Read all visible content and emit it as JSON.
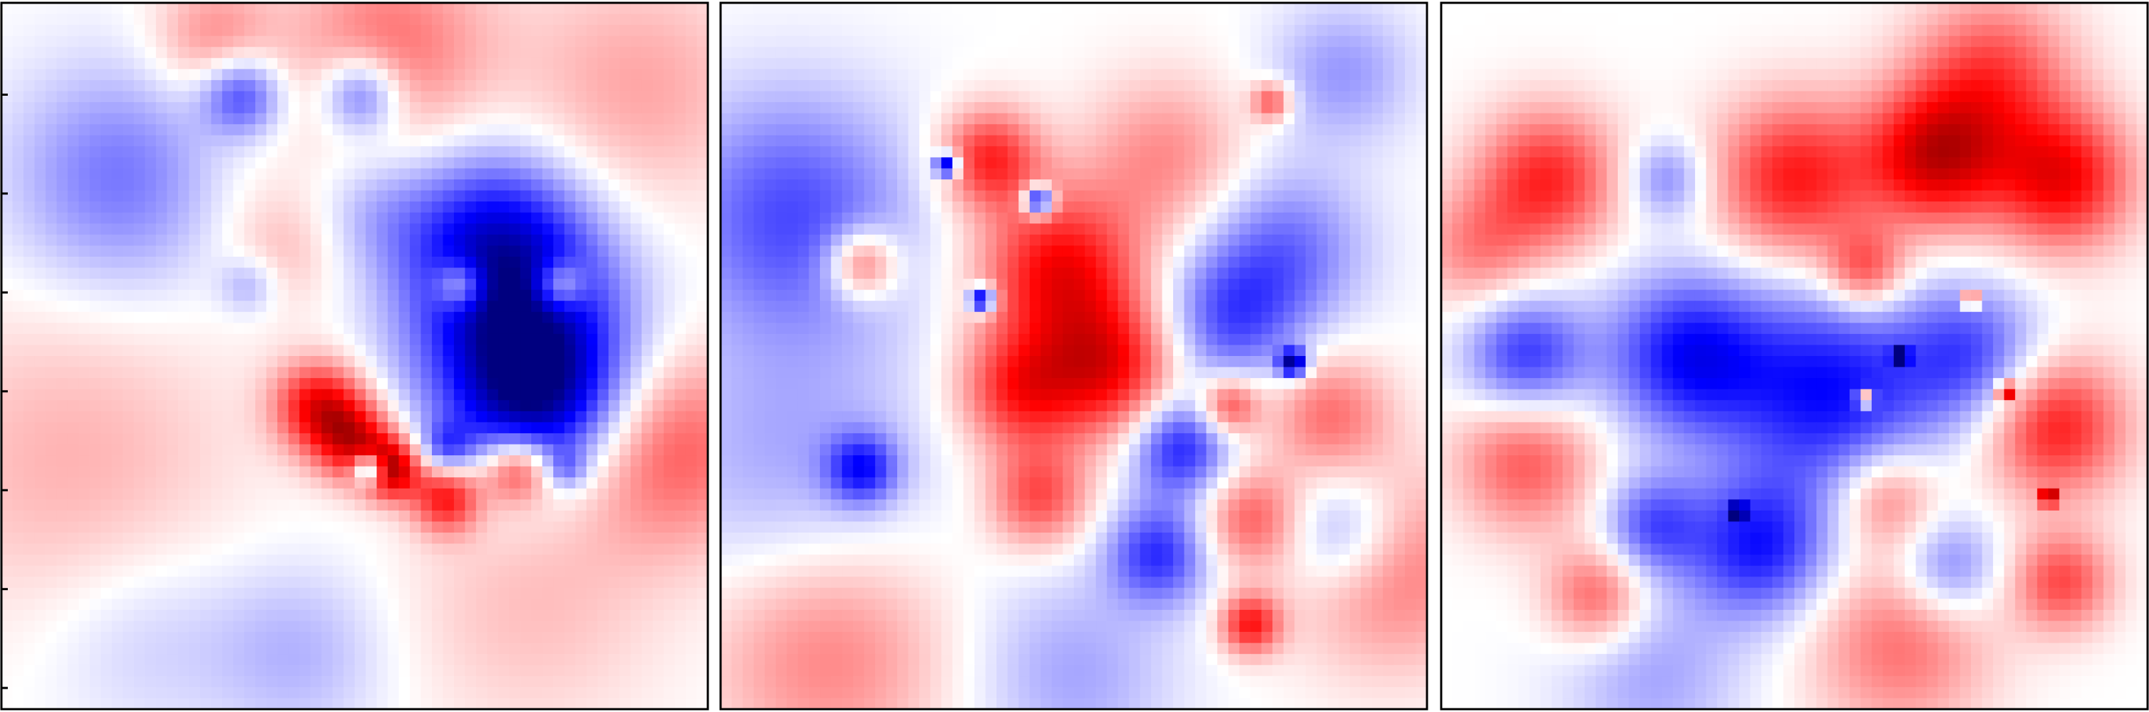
{
  "chart_data": {
    "type": "heatmap",
    "title": "",
    "xlabel": "",
    "ylabel": "",
    "colormap": "bwr",
    "colors": {
      "negative": "#0000ff",
      "zero": "#ffffff",
      "positive": "#ff0000",
      "deep_negative": "#00007f",
      "deep_positive": "#7f0000"
    },
    "grid": false,
    "legend": "none",
    "panels": [
      {
        "id": "panel-1",
        "yticks_visible": 7,
        "description_values": [
          {
            "u": 0.17,
            "v": 0.25,
            "value": -0.55,
            "s": 0.11
          },
          {
            "u": 0.55,
            "v": 0.06,
            "value": 0.55,
            "s": 0.1
          },
          {
            "u": 0.9,
            "v": 0.12,
            "value": 0.35,
            "s": 0.12
          },
          {
            "u": 0.34,
            "v": 0.13,
            "value": -0.75,
            "s": 0.04
          },
          {
            "u": 0.51,
            "v": 0.13,
            "value": -0.75,
            "s": 0.04
          },
          {
            "u": 0.3,
            "v": 0.05,
            "value": 0.45,
            "s": 0.06
          },
          {
            "u": 0.53,
            "v": 0.3,
            "value": -0.25,
            "s": 0.06
          },
          {
            "u": 0.7,
            "v": 0.34,
            "value": -0.95,
            "s": 0.09
          },
          {
            "u": 0.74,
            "v": 0.48,
            "value": -1.0,
            "s": 0.11
          },
          {
            "u": 0.76,
            "v": 0.56,
            "value": -0.9,
            "s": 0.08
          },
          {
            "u": 0.65,
            "v": 0.4,
            "value": 0.75,
            "s": 0.025
          },
          {
            "u": 0.79,
            "v": 0.4,
            "value": 0.75,
            "s": 0.025
          },
          {
            "u": 0.35,
            "v": 0.4,
            "value": -0.35,
            "s": 0.03
          },
          {
            "u": 0.4,
            "v": 0.35,
            "value": 0.25,
            "s": 0.06
          },
          {
            "u": 0.45,
            "v": 0.57,
            "value": 1.0,
            "s": 0.045
          },
          {
            "u": 0.5,
            "v": 0.62,
            "value": 0.95,
            "s": 0.04
          },
          {
            "u": 0.52,
            "v": 0.66,
            "value": -1.3,
            "s": 0.016
          },
          {
            "u": 0.55,
            "v": 0.66,
            "value": 1.2,
            "s": 0.03
          },
          {
            "u": 0.63,
            "v": 0.7,
            "value": 0.95,
            "s": 0.035
          },
          {
            "u": 0.73,
            "v": 0.66,
            "value": 0.95,
            "s": 0.035
          },
          {
            "u": 0.63,
            "v": 0.63,
            "value": -0.55,
            "s": 0.025
          },
          {
            "u": 0.8,
            "v": 0.66,
            "value": -0.4,
            "s": 0.02
          },
          {
            "u": 0.95,
            "v": 0.63,
            "value": 0.65,
            "s": 0.1
          },
          {
            "u": 0.1,
            "v": 0.65,
            "value": 0.3,
            "s": 0.16
          },
          {
            "u": 0.75,
            "v": 0.85,
            "value": 0.25,
            "s": 0.13
          },
          {
            "u": 0.2,
            "v": 0.9,
            "value": -0.2,
            "s": 0.1
          },
          {
            "u": 0.42,
            "v": 0.92,
            "value": -0.3,
            "s": 0.09
          },
          {
            "u": 0.33,
            "v": 0.25,
            "value": 0.1,
            "s": 0.08
          }
        ]
      },
      {
        "id": "panel-2",
        "yticks_visible": 0,
        "description_values": [
          {
            "u": 0.1,
            "v": 0.3,
            "value": -0.7,
            "s": 0.12
          },
          {
            "u": 0.1,
            "v": 0.65,
            "value": -0.35,
            "s": 0.14
          },
          {
            "u": 0.2,
            "v": 0.37,
            "value": 0.8,
            "s": 0.035
          },
          {
            "u": 0.38,
            "v": 0.22,
            "value": 0.85,
            "s": 0.05
          },
          {
            "u": 0.48,
            "v": 0.38,
            "value": 1.0,
            "s": 0.08
          },
          {
            "u": 0.55,
            "v": 0.52,
            "value": 0.95,
            "s": 0.07
          },
          {
            "u": 0.42,
            "v": 0.55,
            "value": 0.8,
            "s": 0.06
          },
          {
            "u": 0.63,
            "v": 0.22,
            "value": 0.45,
            "s": 0.08
          },
          {
            "u": 0.72,
            "v": 0.45,
            "value": -0.65,
            "s": 0.07
          },
          {
            "u": 0.8,
            "v": 0.35,
            "value": -0.55,
            "s": 0.08
          },
          {
            "u": 0.86,
            "v": 0.58,
            "value": 0.55,
            "s": 0.06
          },
          {
            "u": 0.65,
            "v": 0.63,
            "value": -0.9,
            "s": 0.05
          },
          {
            "u": 0.62,
            "v": 0.78,
            "value": -0.8,
            "s": 0.05
          },
          {
            "u": 0.75,
            "v": 0.73,
            "value": 0.6,
            "s": 0.05
          },
          {
            "u": 0.88,
            "v": 0.75,
            "value": -0.55,
            "s": 0.06
          },
          {
            "u": 0.45,
            "v": 0.7,
            "value": 0.7,
            "s": 0.05
          },
          {
            "u": 0.2,
            "v": 0.66,
            "value": -0.8,
            "s": 0.035
          },
          {
            "u": 0.75,
            "v": 0.88,
            "value": 0.9,
            "s": 0.03
          },
          {
            "u": 0.88,
            "v": 0.1,
            "value": -0.4,
            "s": 0.07
          },
          {
            "u": 0.95,
            "v": 0.8,
            "value": 0.55,
            "s": 0.1
          },
          {
            "u": 0.15,
            "v": 0.92,
            "value": 0.5,
            "s": 0.12
          },
          {
            "u": 0.5,
            "v": 0.95,
            "value": -0.35,
            "s": 0.1
          },
          {
            "u": 0.32,
            "v": 0.23,
            "value": -1.4,
            "s": 0.012
          },
          {
            "u": 0.45,
            "v": 0.28,
            "value": -1.4,
            "s": 0.015
          },
          {
            "u": 0.37,
            "v": 0.42,
            "value": -1.4,
            "s": 0.013
          },
          {
            "u": 0.81,
            "v": 0.51,
            "value": -1.4,
            "s": 0.014
          },
          {
            "u": 0.78,
            "v": 0.14,
            "value": 0.7,
            "s": 0.02
          },
          {
            "u": 0.72,
            "v": 0.57,
            "value": 0.8,
            "s": 0.03
          }
        ]
      },
      {
        "id": "panel-3",
        "yticks_visible": 0,
        "description_values": [
          {
            "u": 0.15,
            "v": 0.25,
            "value": 0.85,
            "s": 0.07
          },
          {
            "u": 0.05,
            "v": 0.35,
            "value": 0.45,
            "s": 0.06
          },
          {
            "u": 0.5,
            "v": 0.25,
            "value": 0.9,
            "s": 0.08
          },
          {
            "u": 0.7,
            "v": 0.22,
            "value": 1.1,
            "s": 0.07
          },
          {
            "u": 0.88,
            "v": 0.25,
            "value": 1.0,
            "s": 0.07
          },
          {
            "u": 0.78,
            "v": 0.1,
            "value": 0.7,
            "s": 0.08
          },
          {
            "u": 0.32,
            "v": 0.25,
            "value": -0.5,
            "s": 0.04
          },
          {
            "u": 0.55,
            "v": 0.55,
            "value": -0.95,
            "s": 0.1
          },
          {
            "u": 0.35,
            "v": 0.5,
            "value": -0.95,
            "s": 0.08
          },
          {
            "u": 0.12,
            "v": 0.5,
            "value": -0.8,
            "s": 0.06
          },
          {
            "u": 0.75,
            "v": 0.5,
            "value": -0.7,
            "s": 0.07
          },
          {
            "u": 0.45,
            "v": 0.77,
            "value": -0.9,
            "s": 0.07
          },
          {
            "u": 0.3,
            "v": 0.74,
            "value": -0.65,
            "s": 0.05
          },
          {
            "u": 0.12,
            "v": 0.65,
            "value": 0.65,
            "s": 0.07
          },
          {
            "u": 0.87,
            "v": 0.6,
            "value": 0.9,
            "s": 0.07
          },
          {
            "u": 0.63,
            "v": 0.7,
            "value": 0.55,
            "s": 0.05
          },
          {
            "u": 0.22,
            "v": 0.84,
            "value": 0.65,
            "s": 0.05
          },
          {
            "u": 0.72,
            "v": 0.8,
            "value": -0.55,
            "s": 0.05
          },
          {
            "u": 0.88,
            "v": 0.82,
            "value": 0.7,
            "s": 0.05
          },
          {
            "u": 0.6,
            "v": 0.38,
            "value": 0.7,
            "s": 0.04
          },
          {
            "u": 0.65,
            "v": 0.91,
            "value": 0.55,
            "s": 0.09
          },
          {
            "u": 0.3,
            "v": 0.95,
            "value": -0.35,
            "s": 0.09
          },
          {
            "u": 0.8,
            "v": 0.55,
            "value": 1.4,
            "s": 0.008
          },
          {
            "u": 0.6,
            "v": 0.56,
            "value": 1.4,
            "s": 0.008
          },
          {
            "u": 0.75,
            "v": 0.42,
            "value": 1.4,
            "s": 0.008
          },
          {
            "u": 0.86,
            "v": 0.7,
            "value": 1.4,
            "s": 0.008
          },
          {
            "u": 0.65,
            "v": 0.5,
            "value": -1.4,
            "s": 0.008
          },
          {
            "u": 0.42,
            "v": 0.72,
            "value": -1.3,
            "s": 0.008
          }
        ]
      }
    ]
  }
}
